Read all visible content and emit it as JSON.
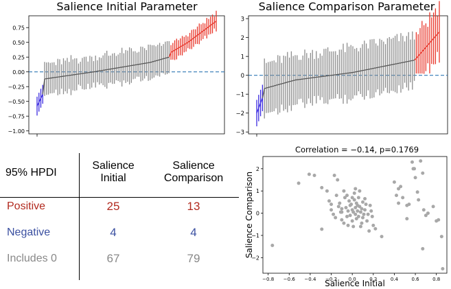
{
  "colors": {
    "positive": "#e8362a",
    "negative": "#3b2be0",
    "neutral": "#8c8c8c",
    "zero_line": "#2f77b4",
    "scatter": "#a8a8a8",
    "text_positive": "#b22a1f",
    "text_negative": "#3a4fa0",
    "text_neutral": "#888888"
  },
  "table": {
    "corner": "95% HPDI",
    "col1": "Salience\nInitial",
    "col2": "Salience\nComparison",
    "rows": [
      {
        "label": "Positive",
        "v1": "25",
        "v2": "13",
        "tone": "positive"
      },
      {
        "label": "Negative",
        "v1": "4",
        "v2": "4",
        "tone": "negative"
      },
      {
        "label": "Includes 0",
        "v1": "67",
        "v2": "79",
        "tone": "neutral"
      }
    ]
  },
  "chart_data": [
    {
      "type": "errorbar",
      "title": "Salience Initial Parameter",
      "ylim": [
        -1.05,
        0.95
      ],
      "yticks": [
        -1.0,
        -0.75,
        -0.5,
        -0.25,
        0.0,
        0.25,
        0.5,
        0.75
      ],
      "ytick_labels": [
        "−1.00",
        "−0.75",
        "−0.50",
        "−0.25",
        "0.00",
        "0.25",
        "0.50",
        "0.75"
      ],
      "n_params": 96,
      "counts": {
        "negative": 4,
        "neutral": 67,
        "positive": 25
      },
      "zero_line": true,
      "means_anchor": {
        "index": [
          0,
          3,
          4,
          30,
          60,
          70,
          71,
          80,
          95
        ],
        "value": [
          -0.58,
          -0.38,
          -0.12,
          0.0,
          0.16,
          0.25,
          0.33,
          0.5,
          0.86
        ]
      },
      "halfwidth": {
        "negative": 0.16,
        "neutral_low": 0.22,
        "neutral_high": 0.28,
        "positive": 0.14
      }
    },
    {
      "type": "errorbar",
      "title": "Salience Comparison Parameter",
      "ylim": [
        -3.1,
        3.15
      ],
      "yticks": [
        -3,
        -2,
        -1,
        0,
        1,
        2,
        3
      ],
      "ytick_labels": [
        "−3",
        "−2",
        "−1",
        "0",
        "1",
        "2",
        "3"
      ],
      "n_params": 96,
      "counts": {
        "negative": 4,
        "neutral": 79,
        "positive": 13
      },
      "zero_line": true,
      "means_anchor": {
        "index": [
          0,
          3,
          4,
          20,
          50,
          82,
          83,
          95
        ],
        "value": [
          -2.0,
          -1.2,
          -0.7,
          -0.25,
          0.15,
          0.8,
          0.9,
          2.3
        ]
      },
      "halfwidth": {
        "negative": 0.7,
        "neutral": 1.3,
        "positive": 1.3
      }
    },
    {
      "type": "scatter",
      "title": "Correlation = −0.14, p=0.1769",
      "xlabel": "Salience Initial",
      "ylabel": "Salience Comparison",
      "xlim": [
        -0.85,
        0.9
      ],
      "ylim": [
        -2.7,
        2.55
      ],
      "xticks": [
        -0.8,
        -0.6,
        -0.4,
        -0.2,
        0.0,
        0.2,
        0.4,
        0.6,
        0.8
      ],
      "xtick_labels": [
        "−0.8",
        "−0.6",
        "−0.4",
        "−0.2",
        "0.0",
        "0.2",
        "0.4",
        "0.6",
        "0.8"
      ],
      "yticks": [
        -2,
        -1,
        0,
        1,
        2
      ],
      "ytick_labels": [
        "−2",
        "−1",
        "0",
        "1",
        "2"
      ],
      "points": [
        [
          -0.76,
          -1.45
        ],
        [
          -0.51,
          1.35
        ],
        [
          -0.41,
          1.75
        ],
        [
          -0.36,
          1.7
        ],
        [
          -0.29,
          1.15
        ],
        [
          -0.29,
          -0.72
        ],
        [
          -0.24,
          1.0
        ],
        [
          -0.2,
          0.4
        ],
        [
          -0.17,
          1.7
        ],
        [
          -0.14,
          1.5
        ],
        [
          -0.2,
          0.15
        ],
        [
          -0.18,
          -0.05
        ],
        [
          -0.15,
          0.8
        ],
        [
          -0.12,
          0.45
        ],
        [
          -0.1,
          0.2
        ],
        [
          -0.1,
          0.05
        ],
        [
          -0.1,
          -0.3
        ],
        [
          -0.08,
          1.0
        ],
        [
          -0.07,
          0.7
        ],
        [
          -0.06,
          0.25
        ],
        [
          -0.05,
          -0.15
        ],
        [
          -0.04,
          0.1
        ],
        [
          -0.03,
          0.55
        ],
        [
          -0.02,
          -0.1
        ],
        [
          -0.02,
          0.35
        ],
        [
          0.0,
          0.15
        ],
        [
          0.0,
          -0.35
        ],
        [
          0.01,
          0.05
        ],
        [
          0.02,
          0.6
        ],
        [
          0.02,
          0.9
        ],
        [
          0.03,
          0.25
        ],
        [
          0.03,
          -0.05
        ],
        [
          0.04,
          0.45
        ],
        [
          0.04,
          -0.25
        ],
        [
          0.05,
          0.1
        ],
        [
          0.06,
          0.7
        ],
        [
          0.06,
          -0.15
        ],
        [
          0.07,
          0.3
        ],
        [
          0.08,
          0.05
        ],
        [
          0.08,
          -0.6
        ],
        [
          0.09,
          0.2
        ],
        [
          0.1,
          -0.2
        ],
        [
          0.1,
          0.5
        ],
        [
          0.11,
          -0.05
        ],
        [
          0.12,
          0.15
        ],
        [
          0.13,
          0.4
        ],
        [
          0.14,
          -0.35
        ],
        [
          0.15,
          -0.05
        ],
        [
          0.16,
          -0.8
        ],
        [
          0.18,
          0.1
        ],
        [
          0.2,
          -0.55
        ],
        [
          0.22,
          -0.7
        ],
        [
          0.28,
          -1.05
        ],
        [
          -0.13,
          0.3
        ],
        [
          -0.22,
          0.55
        ],
        [
          -0.05,
          0.8
        ],
        [
          0.01,
          -0.6
        ],
        [
          -0.08,
          -0.45
        ],
        [
          0.05,
          0.35
        ],
        [
          0.07,
          1.0
        ],
        [
          -0.01,
          0.4
        ],
        [
          0.09,
          -0.45
        ],
        [
          0.12,
          0.65
        ],
        [
          0.17,
          0.35
        ],
        [
          0.19,
          -0.15
        ],
        [
          -0.16,
          -0.2
        ],
        [
          -0.11,
          0.05
        ],
        [
          0.0,
          0.7
        ],
        [
          -0.04,
          -0.55
        ],
        [
          0.03,
          1.1
        ],
        [
          0.4,
          1.4
        ],
        [
          0.42,
          0.8
        ],
        [
          0.44,
          0.45
        ],
        [
          0.46,
          1.2
        ],
        [
          0.48,
          0.7
        ],
        [
          0.52,
          -0.25
        ],
        [
          0.54,
          0.4
        ],
        [
          0.57,
          2.3
        ],
        [
          0.59,
          2.0
        ],
        [
          0.6,
          1.6
        ],
        [
          0.62,
          0.95
        ],
        [
          0.65,
          2.35
        ],
        [
          0.67,
          1.8
        ],
        [
          0.67,
          -1.6
        ],
        [
          0.68,
          0.15
        ],
        [
          0.72,
          0.0
        ],
        [
          0.77,
          0.3
        ],
        [
          0.8,
          -0.35
        ],
        [
          0.82,
          -0.3
        ],
        [
          0.85,
          -1.05
        ],
        [
          0.86,
          -2.5
        ],
        [
          0.58,
          2.0
        ],
        [
          0.44,
          1.1
        ],
        [
          0.52,
          0.35
        ],
        [
          0.7,
          -0.1
        ],
        [
          0.63,
          0.6
        ]
      ]
    }
  ]
}
